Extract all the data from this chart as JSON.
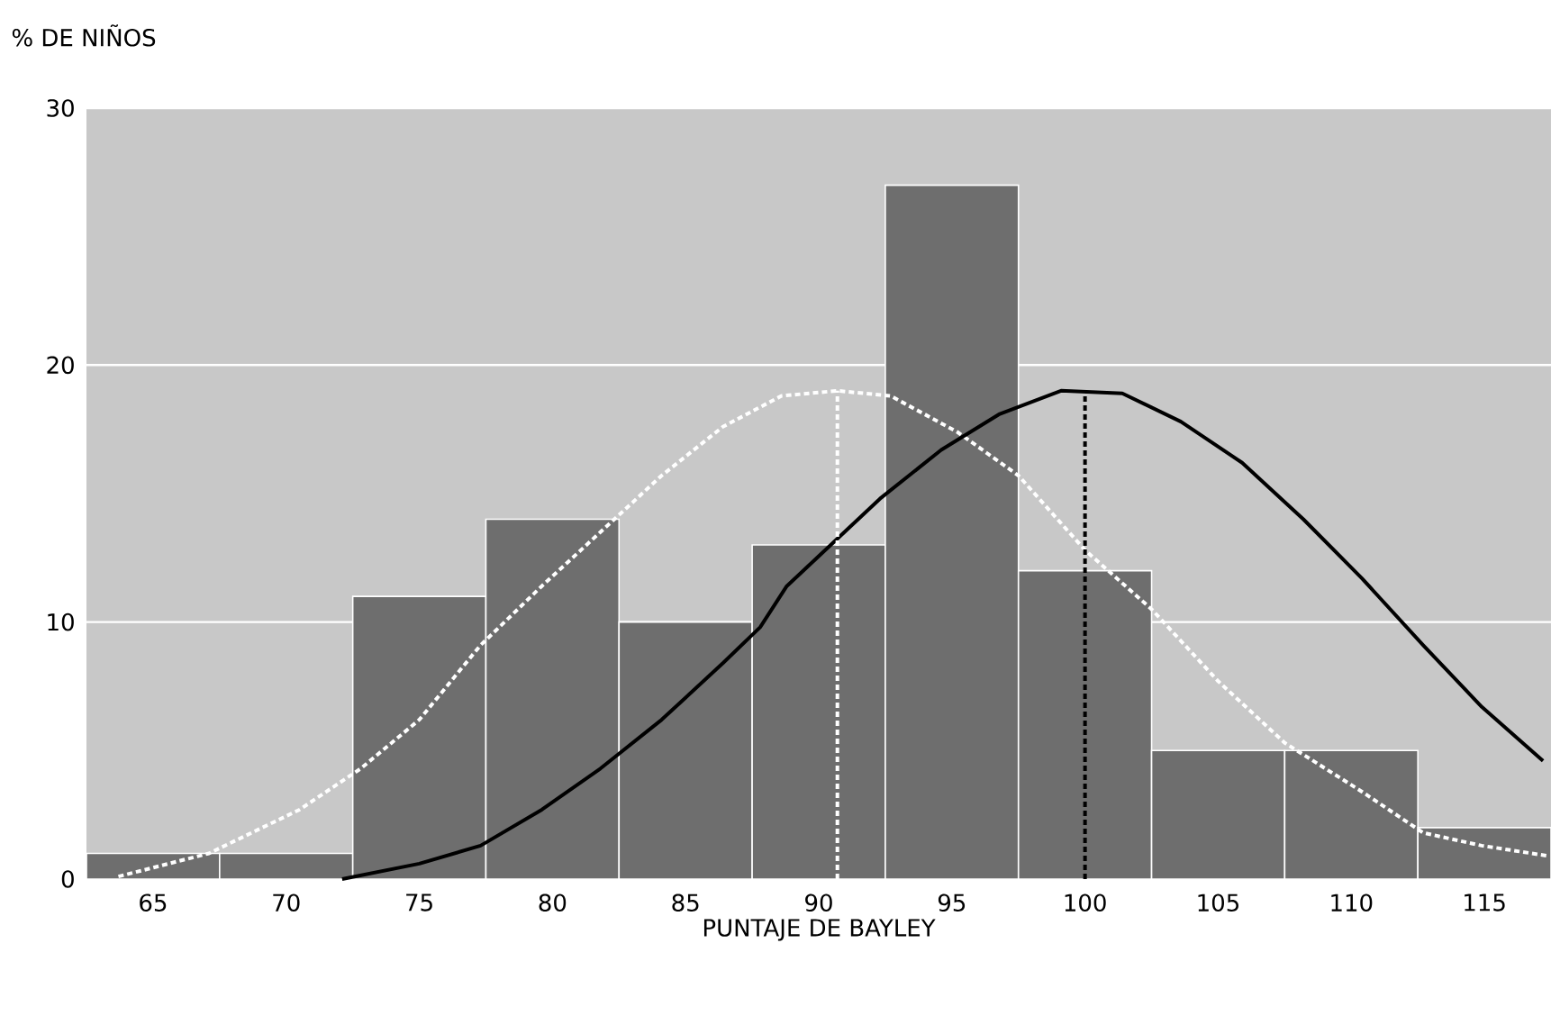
{
  "chart_data": {
    "type": "histogram",
    "xlabel": "PUNTAJE DE BAYLEY",
    "ylabel": "% DE NIÑOS",
    "bins": [
      62.5,
      67.5,
      72.5,
      77.5,
      82.5,
      87.5,
      92.5,
      97.5,
      102.5,
      107.5,
      112.5,
      117.5
    ],
    "values": [
      1,
      1,
      11,
      14,
      10,
      13,
      27,
      12,
      5,
      5,
      2
    ],
    "color": "#6e6e6e",
    "series": [
      {
        "type": "line",
        "color": "#ffffff",
        "line_style": "dashed",
        "x": [
          63.7,
          67.1,
          70.5,
          72.8,
          75.0,
          77.3,
          79.6,
          81.8,
          84.1,
          86.4,
          88.6,
          90.7,
          92.7,
          95.2,
          97.5,
          100,
          102.5,
          105,
          107.5,
          110.4,
          112.7,
          114.9,
          117.4
        ],
        "values": [
          0.1,
          1.0,
          2.7,
          4.3,
          6.2,
          9.1,
          11.4,
          13.5,
          15.7,
          17.6,
          18.8,
          19.0,
          18.8,
          17.4,
          15.7,
          12.8,
          10.5,
          7.7,
          5.3,
          3.4,
          1.8,
          1.3,
          0.9
        ]
      },
      {
        "type": "line",
        "color": "#000000",
        "line_style": "solid",
        "x": [
          72.1,
          75.0,
          77.3,
          79.6,
          81.8,
          84.1,
          86.4,
          87.8,
          88.8,
          92.3,
          94.6,
          96.8,
          99.1,
          101.4,
          103.6,
          105.9,
          108.2,
          110.4,
          112.7,
          114.9,
          117.2
        ],
        "values": [
          0,
          0.6,
          1.3,
          2.7,
          4.3,
          6.2,
          8.4,
          9.8,
          11.4,
          14.8,
          16.7,
          18.1,
          19.0,
          18.9,
          17.8,
          16.2,
          14.0,
          11.7,
          9.1,
          6.7,
          4.6
        ]
      },
      {
        "type": "line",
        "color": "#ffffff",
        "line_style": "dashed",
        "x": [
          90.7,
          90.7
        ],
        "values": [
          0,
          19.0
        ]
      },
      {
        "type": "line",
        "color": "#000000",
        "line_style": "dashed",
        "x": [
          100,
          100
        ],
        "values": [
          0,
          19.0
        ]
      }
    ],
    "xlim": [
      62.5,
      117.5
    ],
    "ylim": [
      0,
      30
    ],
    "xticks": [
      65,
      70,
      75,
      80,
      85,
      90,
      95,
      100,
      105,
      110,
      115
    ],
    "yticks": [
      0,
      10,
      20,
      30
    ],
    "grid": "y"
  }
}
